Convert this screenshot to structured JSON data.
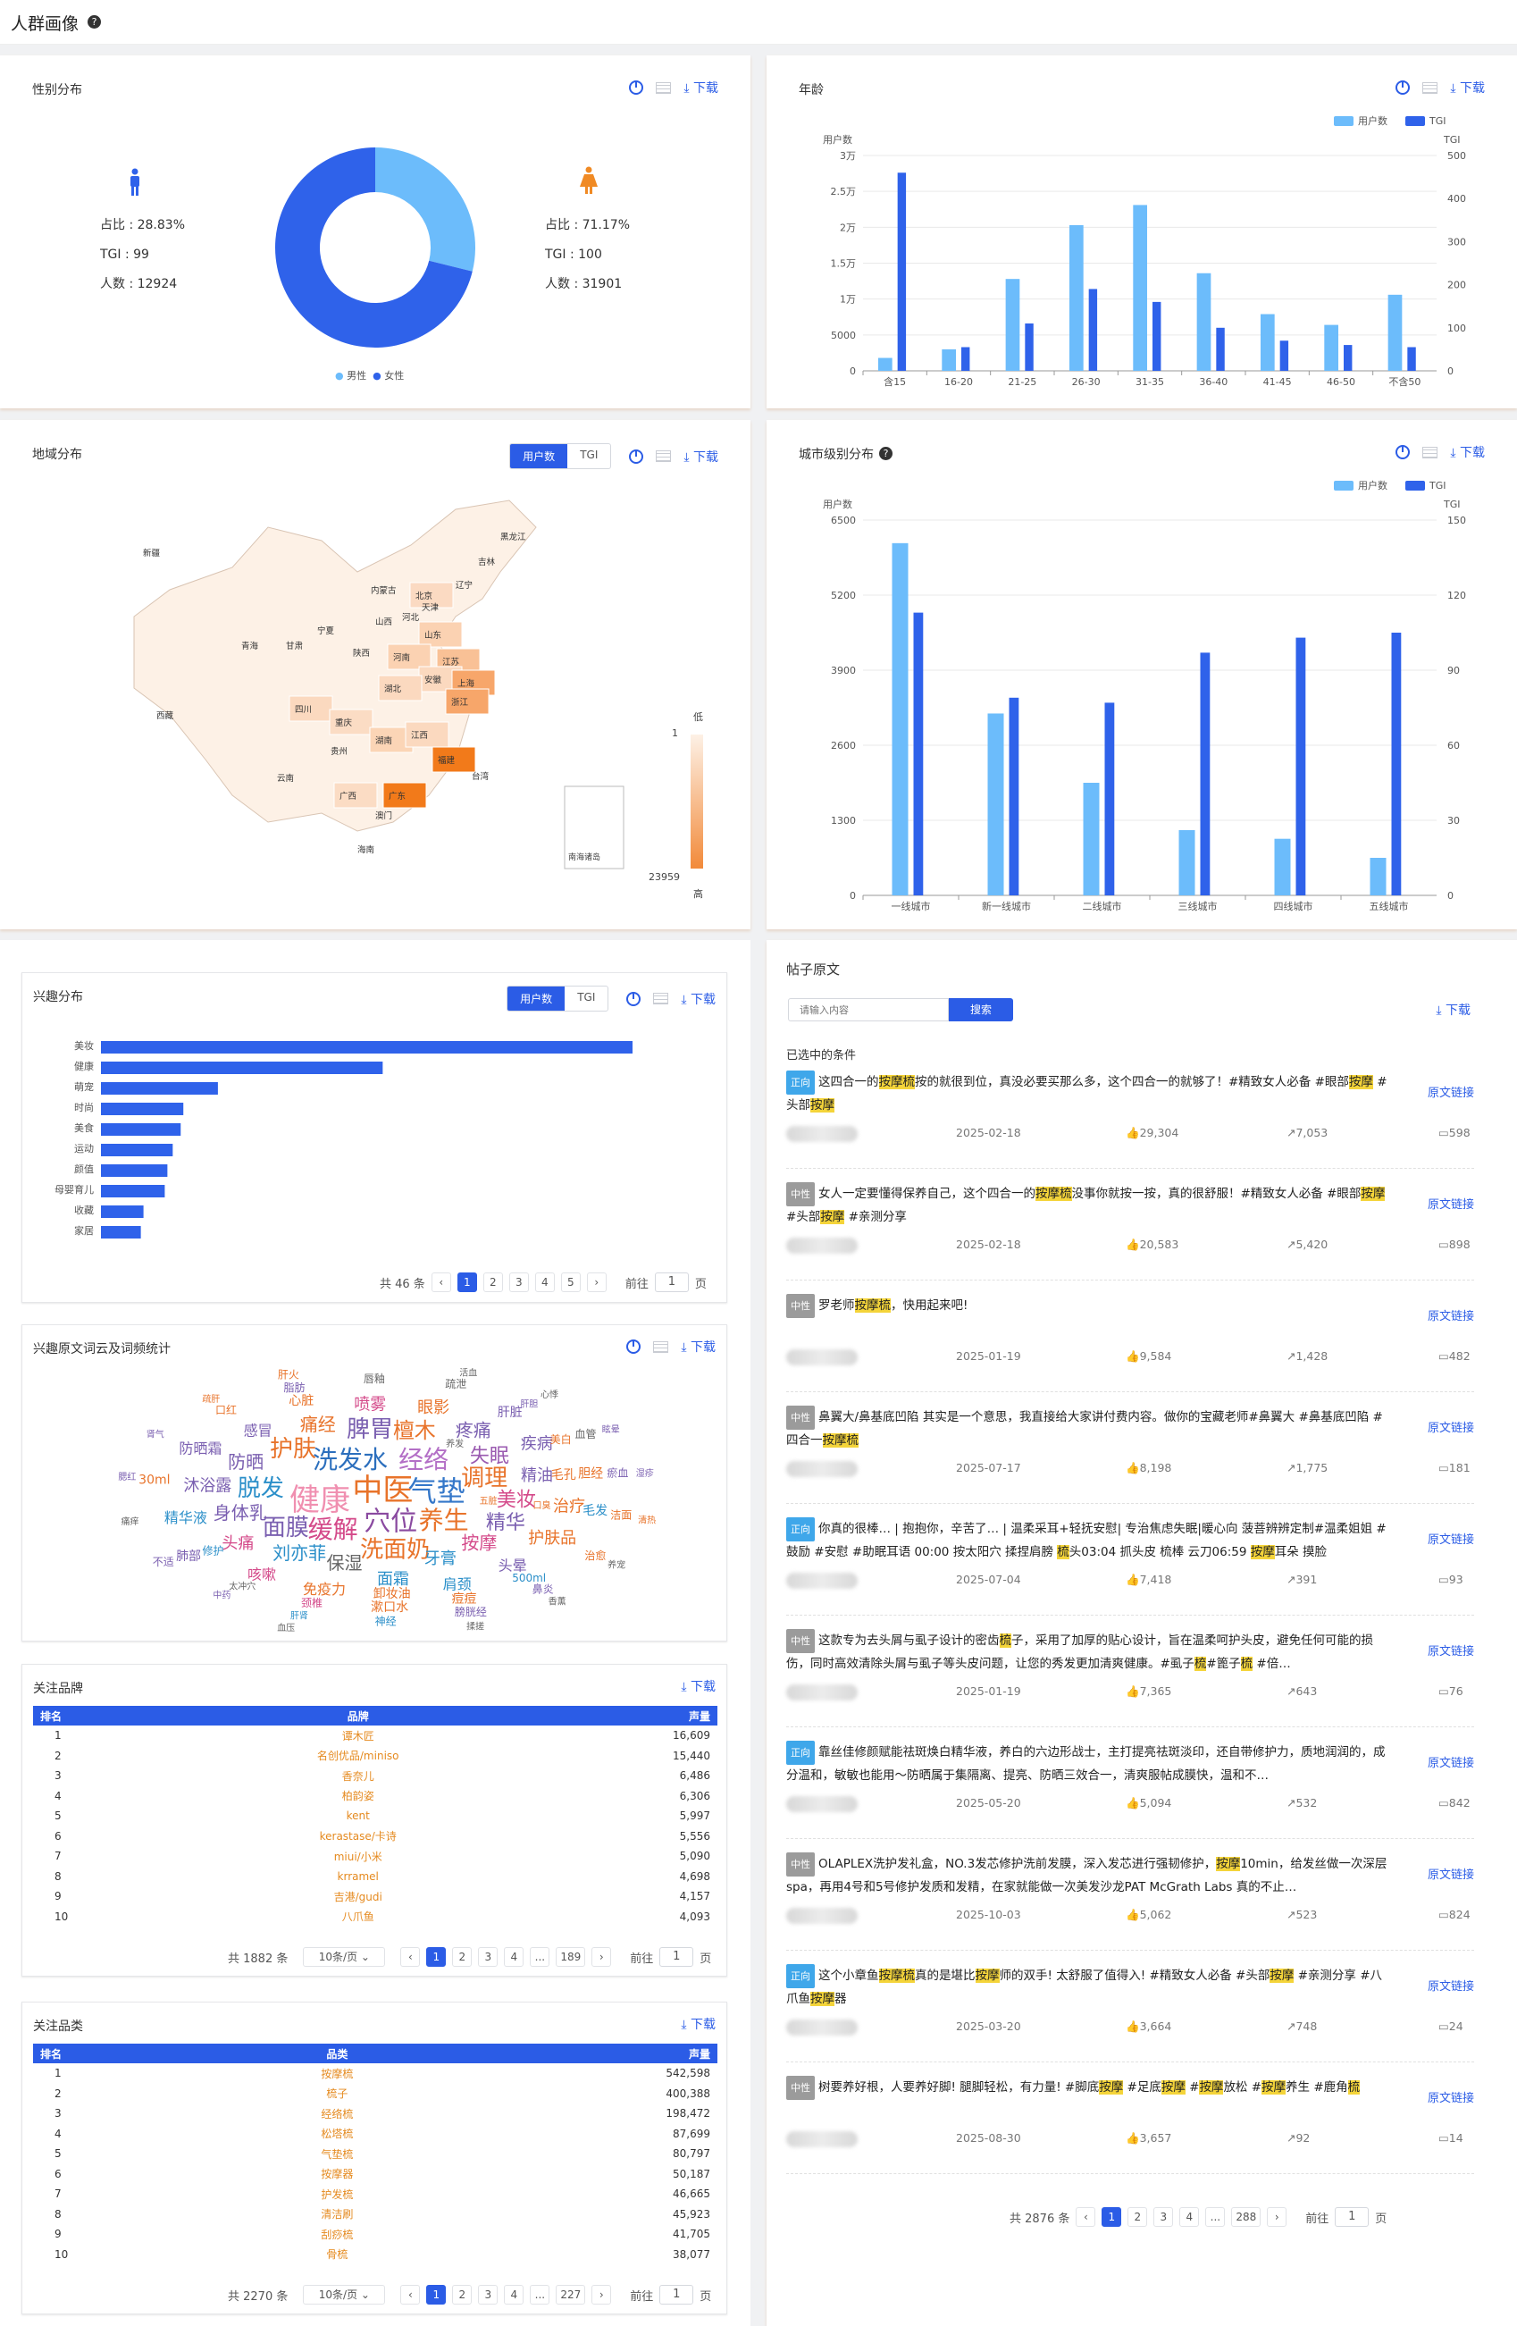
{
  "page": {
    "title": "人群画像"
  },
  "common": {
    "download": "下载",
    "user_count": "用户数",
    "tgi": "TGI"
  },
  "gender": {
    "title": "性别分布",
    "male": {
      "ratio": "占比 : 28.83%",
      "tgi": "TGI : 99",
      "count": "人数 : 12924",
      "pct": 28.83
    },
    "female": {
      "ratio": "占比 : 71.17%",
      "tgi": "TGI : 100",
      "count": "人数 : 31901",
      "pct": 71.17
    },
    "legend": [
      "男性",
      "女性"
    ],
    "colors": {
      "male": "#6cbcfb",
      "female": "#2f62ea"
    }
  },
  "age": {
    "title": "年龄",
    "chart_data": {
      "type": "bar",
      "categories": [
        "含15",
        "16-20",
        "21-25",
        "26-30",
        "31-35",
        "36-40",
        "41-45",
        "46-50",
        "不含50"
      ],
      "ylabel": "用户数",
      "y2label": "TGI",
      "ylim": [
        0,
        30000
      ],
      "y2lim": [
        0,
        500
      ],
      "yticks": [
        "0",
        "5000",
        "1万",
        "1.5万",
        "2万",
        "2.5万",
        "3万"
      ],
      "y2ticks": [
        "0",
        "100",
        "200",
        "300",
        "400",
        "500"
      ],
      "series": [
        {
          "name": "用户数",
          "values": [
            1800,
            3000,
            12800,
            20300,
            23100,
            13600,
            7900,
            6400,
            10600
          ],
          "color": "#6cbcfb"
        },
        {
          "name": "TGI",
          "values": [
            460,
            55,
            110,
            190,
            160,
            100,
            70,
            60,
            55
          ],
          "color": "#2f62ea"
        }
      ]
    }
  },
  "region": {
    "title": "地域分布",
    "seg": [
      "用户数",
      "TGI"
    ],
    "legend_low": "低",
    "legend_high": "高",
    "legend_min": "1",
    "legend_max": "23959",
    "south_sea": "南海诸岛",
    "provinces": [
      "黑龙江",
      "吉林",
      "辽宁",
      "内蒙古",
      "北京",
      "天津",
      "河北",
      "山西",
      "山东",
      "宁夏",
      "甘肃",
      "青海",
      "陕西",
      "河南",
      "江苏",
      "安徽",
      "上海",
      "湖北",
      "浙江",
      "四川",
      "重庆",
      "新疆",
      "西藏",
      "湖南",
      "江西",
      "贵州",
      "福建",
      "台湾",
      "云南",
      "广西",
      "广东",
      "海南",
      "澳门"
    ]
  },
  "city": {
    "title": "城市级别分布",
    "chart_data": {
      "type": "bar",
      "categories": [
        "一线城市",
        "新一线城市",
        "二线城市",
        "三线城市",
        "四线城市",
        "五线城市"
      ],
      "ylabel": "用户数",
      "y2label": "TGI",
      "ylim": [
        0,
        6500
      ],
      "y2lim": [
        0,
        150
      ],
      "yticks": [
        "0",
        "1300",
        "2600",
        "3900",
        "5200",
        "6500"
      ],
      "y2ticks": [
        "0",
        "30",
        "60",
        "90",
        "120",
        "150"
      ],
      "series": [
        {
          "name": "用户数",
          "values": [
            6100,
            3150,
            1950,
            1130,
            980,
            650
          ],
          "color": "#6cbcfb"
        },
        {
          "name": "TGI",
          "values": [
            113,
            79,
            77,
            97,
            103,
            105
          ],
          "color": "#2f62ea"
        }
      ]
    }
  },
  "interest": {
    "title": "兴趣分布",
    "seg": [
      "用户数",
      "TGI"
    ],
    "chart_data": {
      "type": "bar",
      "categories": [
        "美妆",
        "健康",
        "萌宠",
        "时尚",
        "美食",
        "运动",
        "颜值",
        "母婴育儿",
        "收藏",
        "家居"
      ],
      "values": [
        100,
        53,
        22,
        15.5,
        15,
        13.5,
        12.5,
        12,
        8,
        7.5
      ]
    },
    "total": "共 46 条",
    "pages": [
      "1",
      "2",
      "3",
      "4",
      "5"
    ],
    "goto": "前往",
    "page_in": "1",
    "page_unit": "页"
  },
  "wordcloud": {
    "title": "兴趣原文词云及词频统计",
    "words": [
      [
        "中医",
        34,
        "#e8732a"
      ],
      [
        "健康",
        34,
        "#f08fb0"
      ],
      [
        "气垫",
        32,
        "#3477c9"
      ],
      [
        "穴位",
        30,
        "#8a4aa0"
      ],
      [
        "洗发水",
        28,
        "#2c6fbd"
      ],
      [
        "经络",
        28,
        "#b36fc6"
      ],
      [
        "养生",
        28,
        "#e8732a"
      ],
      [
        "缓解",
        28,
        "#d44a8a"
      ],
      [
        "调理",
        26,
        "#e8732a"
      ],
      [
        "洗面奶",
        26,
        "#e8732a"
      ],
      [
        "面膜",
        26,
        "#7a5fb0"
      ],
      [
        "脱发",
        26,
        "#2b8fc9"
      ],
      [
        "护肤",
        26,
        "#e8732a"
      ],
      [
        "脾胃",
        26,
        "#7a5fb0"
      ],
      [
        "檀木",
        24,
        "#e8732a"
      ],
      [
        "失眠",
        22,
        "#9a5ab0"
      ],
      [
        "美妆",
        22,
        "#d44a8a"
      ],
      [
        "精华",
        22,
        "#7a5fb0"
      ],
      [
        "按摩",
        20,
        "#d44a8a"
      ],
      [
        "保湿",
        20,
        "#666"
      ],
      [
        "刘亦菲",
        20,
        "#2b8fc9"
      ],
      [
        "身体乳",
        20,
        "#7a5fb0"
      ],
      [
        "防晒",
        20,
        "#7a5fb0"
      ],
      [
        "痛经",
        20,
        "#e8732a"
      ],
      [
        "疼痛",
        20,
        "#7a5fb0"
      ],
      [
        "牙膏",
        18,
        "#2b8fc9"
      ],
      [
        "精油",
        18,
        "#7a5fb0"
      ],
      [
        "面霜",
        18,
        "#2b8fc9"
      ],
      [
        "头痛",
        18,
        "#d44a8a"
      ],
      [
        "沐浴露",
        18,
        "#7a5fb0"
      ],
      [
        "喷雾",
        18,
        "#d44a8a"
      ],
      [
        "眼影",
        18,
        "#e8732a"
      ],
      [
        "疾病",
        18,
        "#7a5fb0"
      ],
      [
        "治疗",
        18,
        "#e8732a"
      ],
      [
        "护肤品",
        18,
        "#e8732a"
      ],
      [
        "感冒",
        16,
        "#7a5fb0"
      ],
      [
        "头晕",
        16,
        "#7a5fb0"
      ],
      [
        "肩颈",
        16,
        "#2b8fc9"
      ],
      [
        "免疫力",
        16,
        "#e8732a"
      ],
      [
        "卸妆油",
        14,
        "#e8732a"
      ],
      [
        "咳嗽",
        16,
        "#d44a8a"
      ],
      [
        "精华液",
        16,
        "#2b8fc9"
      ],
      [
        "防晒霜",
        16,
        "#7a5fb0"
      ],
      [
        "毛孔",
        14,
        "#e8732a"
      ],
      [
        "心脏",
        14,
        "#e8732a"
      ],
      [
        "肝脏",
        14,
        "#7a5fb0"
      ],
      [
        "胆经",
        14,
        "#e8732a"
      ],
      [
        "毛发",
        14,
        "#2b8fc9"
      ],
      [
        "痘痘",
        14,
        "#e8732a"
      ],
      [
        "漱口水",
        14,
        "#e8732a"
      ],
      [
        "肺部",
        14,
        "#7a5fb0"
      ],
      [
        "30ml",
        14,
        "#e8732a"
      ],
      [
        "500ml",
        12,
        "#2b8fc9"
      ],
      [
        "修护",
        12,
        "#2b8fc9"
      ],
      [
        "美白",
        12,
        "#e8732a"
      ],
      [
        "颈椎",
        12,
        "#d44a8a"
      ],
      [
        "口红",
        12,
        "#e8732a"
      ],
      [
        "脂肪",
        12,
        "#7a5fb0"
      ],
      [
        "唇釉",
        12,
        "#666"
      ],
      [
        "疏泄",
        12,
        "#666"
      ],
      [
        "太冲穴",
        10,
        "#666"
      ],
      [
        "五脏",
        10,
        "#e8732a"
      ],
      [
        "养发",
        10,
        "#666"
      ],
      [
        "血管",
        12,
        "#666"
      ],
      [
        "瘀血",
        12,
        "#7a5fb0"
      ],
      [
        "口臭",
        10,
        "#e8732a"
      ],
      [
        "洁面",
        12,
        "#e8732a"
      ],
      [
        "治愈",
        12,
        "#e8732a"
      ],
      [
        "鼻炎",
        12,
        "#7a5fb0"
      ],
      [
        "膀胱经",
        12,
        "#7a5fb0"
      ],
      [
        "神经",
        12,
        "#2b8fc9"
      ],
      [
        "肝胆",
        10,
        "#7a5fb0"
      ],
      [
        "肝肾",
        10,
        "#2b8fc9"
      ],
      [
        "不适",
        12,
        "#7a5fb0"
      ],
      [
        "中药",
        10,
        "#7a5fb0"
      ],
      [
        "痛痒",
        10,
        "#666"
      ],
      [
        "腮红",
        10,
        "#7a5fb0"
      ],
      [
        "肾气",
        10,
        "#7a5fb0"
      ],
      [
        "疏肝",
        10,
        "#e8732a"
      ],
      [
        "肝火",
        12,
        "#e8732a"
      ],
      [
        "活血",
        10,
        "#666"
      ],
      [
        "心悸",
        10,
        "#666"
      ],
      [
        "眩晕",
        10,
        "#7a5fb0"
      ],
      [
        "湿疹",
        10,
        "#7a5fb0"
      ],
      [
        "清热",
        10,
        "#e8732a"
      ],
      [
        "养宠",
        10,
        "#666"
      ],
      [
        "香薰",
        10,
        "#666"
      ],
      [
        "揉搓",
        10,
        "#666"
      ],
      [
        "血压",
        10,
        "#666"
      ]
    ]
  },
  "brands": {
    "title": "关注品牌",
    "cols": [
      "排名",
      "品牌",
      "声量"
    ],
    "rows": [
      [
        "1",
        "谭木匠",
        "16,609"
      ],
      [
        "2",
        "名创优品/miniso",
        "15,440"
      ],
      [
        "3",
        "香奈儿",
        "6,486"
      ],
      [
        "4",
        "柏韵姿",
        "6,306"
      ],
      [
        "5",
        "kent",
        "5,997"
      ],
      [
        "6",
        "kerastase/卡诗",
        "5,556"
      ],
      [
        "7",
        "miui/小米",
        "5,090"
      ],
      [
        "8",
        "krramel",
        "4,698"
      ],
      [
        "9",
        "吉港/gudi",
        "4,157"
      ],
      [
        "10",
        "八爪鱼",
        "4,093"
      ]
    ],
    "total": "共 1882 条",
    "per": "10条/页",
    "pages": [
      "1",
      "2",
      "3",
      "4",
      "...",
      "189"
    ],
    "goto": "前往",
    "page_in": "1",
    "page_unit": "页"
  },
  "cats": {
    "title": "关注品类",
    "cols": [
      "排名",
      "品类",
      "声量"
    ],
    "rows": [
      [
        "1",
        "按摩梳",
        "542,598"
      ],
      [
        "2",
        "梳子",
        "400,388"
      ],
      [
        "3",
        "经络梳",
        "198,472"
      ],
      [
        "4",
        "松塔梳",
        "87,699"
      ],
      [
        "5",
        "气垫梳",
        "80,797"
      ],
      [
        "6",
        "按摩器",
        "50,187"
      ],
      [
        "7",
        "护发梳",
        "46,665"
      ],
      [
        "8",
        "清洁刷",
        "45,923"
      ],
      [
        "9",
        "刮痧梳",
        "41,705"
      ],
      [
        "10",
        "骨梳",
        "38,077"
      ]
    ],
    "total": "共 2270 条",
    "per": "10条/页",
    "pages": [
      "1",
      "2",
      "3",
      "4",
      "...",
      "227"
    ],
    "goto": "前往",
    "page_in": "1",
    "page_unit": "页"
  },
  "posts": {
    "title": "帖子原文",
    "search_placeholder": "请输入内容",
    "search_btn": "搜索",
    "selected_label": "已选中的条件",
    "link": "原文链接",
    "items": [
      {
        "tag": "正向",
        "text": "这四合一的<m>按摩梳</m>按的就很到位，真没必要买那么多，这个四合一的就够了！#精致女人必备 #眼部<m>按摩</m> #头部<m>按摩</m>",
        "date": "2025-02-18",
        "like": "29,304",
        "share": "7,053",
        "cmt": "598"
      },
      {
        "tag": "中性",
        "text": "女人一定要懂得保养自己，这个四合一的<m>按摩梳</m>没事你就按一按，真的很舒服！#精致女人必备 #眼部<m>按摩</m> #头部<m>按摩</m> #亲测分享",
        "date": "2025-02-18",
        "like": "20,583",
        "share": "5,420",
        "cmt": "898"
      },
      {
        "tag": "中性",
        "text": "罗老师<m>按摩梳</m>，快用起来吧!",
        "date": "2025-01-19",
        "like": "9,584",
        "share": "1,428",
        "cmt": "482"
      },
      {
        "tag": "中性",
        "text": "鼻翼大/鼻基底凹陷 其实是一个意思，我直接给大家讲付费内容。做你的宝藏老师#鼻翼大 #鼻基底凹陷 #四合一<m>按摩梳</m>",
        "date": "2025-07-17",
        "like": "8,198",
        "share": "1,775",
        "cmt": "181"
      },
      {
        "tag": "正向",
        "text": "你真的很棒… | 抱抱你，辛苦了… | 温柔采耳+轻抚安慰| 专治焦虑失眠|暖心向 菠菩辨辨定制#温柔姐姐 #鼓励 #安慰 #助眠耳语 00:00 按太阳穴 揉捏肩膀 <m>梳</m>头03:04 抓头皮 梳棒 云刀06:59 <m>按摩</m>耳朵 摸脸",
        "date": "2025-07-04",
        "like": "7,418",
        "share": "391",
        "cmt": "93"
      },
      {
        "tag": "中性",
        "text": "这款专为去头屑与虱子设计的密齿<m>梳</m>子，采用了加厚的贴心设计，旨在温柔呵护头皮，避免任何可能的损伤，同时高效清除头屑与虱子等头皮问题，让您的秀发更加清爽健康。#虱子<m>梳</m>#篦子<m>梳</m> #倍…",
        "date": "2025-01-19",
        "like": "7,365",
        "share": "643",
        "cmt": "76"
      },
      {
        "tag": "正向",
        "text": "靠丝佳修颜赋能祛斑焕白精华液，养白的六边形战士，主打提亮祛斑淡印，还自带修护力，质地润润的，成分温和，敏敏也能用～防晒属于集隔离、提亮、防晒三效合一，清爽服帖成膜快，温和不…",
        "date": "2025-05-20",
        "like": "5,094",
        "share": "532",
        "cmt": "842"
      },
      {
        "tag": "中性",
        "text": "OLAPLEX洗护发礼盒，NO.3发芯修护洗前发膜，深入发芯进行强韧修护，<m>按摩</m>10min，给发丝做一次深层spa，再用4号和5号修护发质和发精，在家就能做一次美发沙龙PAT McGrath Labs 真的不止…",
        "date": "2025-10-03",
        "like": "5,062",
        "share": "523",
        "cmt": "824"
      },
      {
        "tag": "正向",
        "text": "这个小章鱼<m>按摩梳</m>真的是堪比<m>按摩</m>师的双手! 太舒服了值得入! #精致女人必备 #头部<m>按摩</m> #亲测分享 #八爪鱼<m>按摩</m>器",
        "date": "2025-03-20",
        "like": "3,664",
        "share": "748",
        "cmt": "24"
      },
      {
        "tag": "中性",
        "text": "树要养好根，人要养好脚! 腿脚轻松，有力量! #脚底<m>按摩</m> #足底<m>按摩</m> #<m>按摩</m>放松 #<m>按摩</m>养生 #鹿角<m>梳</m>",
        "date": "2025-08-30",
        "like": "3,657",
        "share": "92",
        "cmt": "14"
      }
    ],
    "total": "共 2876 条",
    "pages": [
      "1",
      "2",
      "3",
      "4",
      "...",
      "288"
    ],
    "goto": "前往",
    "page_in": "1",
    "page_unit": "页"
  }
}
